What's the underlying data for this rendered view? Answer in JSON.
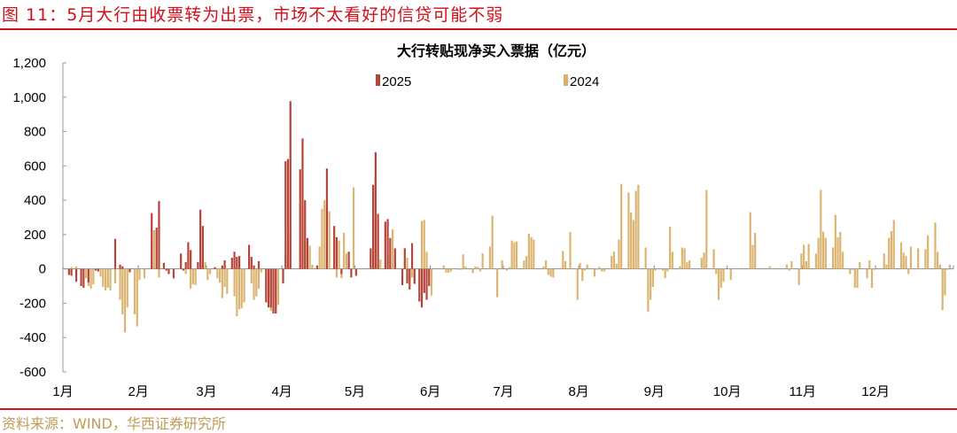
{
  "figure_title": "图 11：5月大行由收票转为出票，市场不太看好的信贷可能不弱",
  "source": "资料来源：WIND，华西证券研究所",
  "chart_data": {
    "type": "bar",
    "title": "大行转贴现净买入票据（亿元）",
    "xlabel": "",
    "ylabel": "",
    "ylim": [
      -600,
      1200
    ],
    "yticks": [
      "1,200",
      "1,000",
      "800",
      "600",
      "400",
      "200",
      "0",
      "-200",
      "-400",
      "-600"
    ],
    "ytick_values": [
      1200,
      1000,
      800,
      600,
      400,
      200,
      0,
      -200,
      -400,
      -600
    ],
    "xticks": [
      "1月",
      "2月",
      "3月",
      "4月",
      "5月",
      "6月",
      "7月",
      "8月",
      "9月",
      "10月",
      "11月",
      "12月"
    ],
    "grid": false,
    "legend_placement": "top",
    "series": [
      {
        "name": "2025",
        "color": "#b5443a",
        "points": [
          [
            "01-03",
            -35
          ],
          [
            "01-04",
            -40
          ],
          [
            "01-06",
            -75
          ],
          [
            "01-08",
            -100
          ],
          [
            "01-09",
            -110
          ],
          [
            "01-11",
            -80
          ],
          [
            "01-14",
            -10
          ],
          [
            "01-15",
            -15
          ],
          [
            "01-22",
            175
          ],
          [
            "01-24",
            25
          ],
          [
            "01-25",
            15
          ],
          [
            "01-28",
            -20
          ],
          [
            "02-06",
            325
          ],
          [
            "02-08",
            240
          ],
          [
            "02-09",
            395
          ],
          [
            "02-11",
            35
          ],
          [
            "02-12",
            -10
          ],
          [
            "02-13",
            -30
          ],
          [
            "02-15",
            -55
          ],
          [
            "02-18",
            90
          ],
          [
            "02-19",
            -10
          ],
          [
            "02-20",
            40
          ],
          [
            "02-21",
            155
          ],
          [
            "02-22",
            110
          ],
          [
            "02-25",
            40
          ],
          [
            "02-26",
            345
          ],
          [
            "02-27",
            250
          ],
          [
            "03-04",
            10
          ],
          [
            "03-07",
            20
          ],
          [
            "03-08",
            50
          ],
          [
            "03-11",
            65
          ],
          [
            "03-12",
            100
          ],
          [
            "03-13",
            70
          ],
          [
            "03-14",
            75
          ],
          [
            "03-18",
            140
          ],
          [
            "03-19",
            70
          ],
          [
            "03-20",
            20
          ],
          [
            "03-22",
            45
          ],
          [
            "03-25",
            -195
          ],
          [
            "03-26",
            -225
          ],
          [
            "03-27",
            -225
          ],
          [
            "03-28",
            -260
          ],
          [
            "03-29",
            -260
          ],
          [
            "04-01",
            -85
          ],
          [
            "04-02",
            627
          ],
          [
            "04-03",
            640
          ],
          [
            "04-04",
            977
          ],
          [
            "04-08",
            580
          ],
          [
            "04-09",
            760
          ],
          [
            "04-10",
            400
          ],
          [
            "04-11",
            180
          ],
          [
            "04-15",
            20
          ],
          [
            "04-19",
            585
          ],
          [
            "04-22",
            250
          ],
          [
            "04-23",
            185
          ],
          [
            "04-25",
            -30
          ],
          [
            "04-28",
            100
          ],
          [
            "04-29",
            -50
          ],
          [
            "05-01",
            -40
          ],
          [
            "05-07",
            120
          ],
          [
            "05-08",
            490
          ],
          [
            "05-09",
            680
          ],
          [
            "05-10",
            320
          ],
          [
            "05-13",
            275
          ],
          [
            "05-14",
            290
          ],
          [
            "05-15",
            180
          ],
          [
            "05-17",
            120
          ],
          [
            "05-20",
            -95
          ],
          [
            "05-21",
            120
          ],
          [
            "05-22",
            -85
          ],
          [
            "05-23",
            -120
          ],
          [
            "05-24",
            150
          ],
          [
            "05-25",
            -85
          ],
          [
            "05-27",
            -190
          ],
          [
            "05-28",
            -225
          ],
          [
            "05-29",
            -140
          ],
          [
            "05-30",
            -180
          ],
          [
            "05-31",
            -100
          ]
        ]
      },
      {
        "name": "2024",
        "color": "#d9b06a",
        "points": [
          [
            "01-04",
            10
          ],
          [
            "01-06",
            15
          ],
          [
            "01-10",
            -55
          ],
          [
            "01-11",
            -100
          ],
          [
            "01-12",
            -115
          ],
          [
            "01-13",
            -90
          ],
          [
            "01-16",
            -45
          ],
          [
            "01-17",
            -105
          ],
          [
            "01-18",
            -125
          ],
          [
            "01-19",
            -110
          ],
          [
            "01-20",
            -125
          ],
          [
            "01-22",
            -85
          ],
          [
            "01-24",
            -180
          ],
          [
            "01-25",
            -265
          ],
          [
            "01-26",
            -370
          ],
          [
            "01-27",
            -225
          ],
          [
            "01-30",
            -265
          ],
          [
            "01-31",
            -335
          ],
          [
            "02-01",
            -65
          ],
          [
            "02-03",
            -55
          ],
          [
            "02-06",
            150
          ],
          [
            "02-07",
            225
          ],
          [
            "02-09",
            -50
          ],
          [
            "02-20",
            -30
          ],
          [
            "02-22",
            -115
          ],
          [
            "02-23",
            -90
          ],
          [
            "02-24",
            -95
          ],
          [
            "02-27",
            40
          ],
          [
            "02-28",
            40
          ],
          [
            "03-01",
            -65
          ],
          [
            "03-02",
            -30
          ],
          [
            "03-05",
            -55
          ],
          [
            "03-06",
            -80
          ],
          [
            "03-07",
            -170
          ],
          [
            "03-08",
            -105
          ],
          [
            "03-09",
            -145
          ],
          [
            "03-12",
            -160
          ],
          [
            "03-13",
            -275
          ],
          [
            "03-14",
            -235
          ],
          [
            "03-15",
            -230
          ],
          [
            "03-16",
            -195
          ],
          [
            "03-19",
            -85
          ],
          [
            "03-20",
            -180
          ],
          [
            "03-21",
            -160
          ],
          [
            "03-22",
            -115
          ],
          [
            "03-23",
            -20
          ],
          [
            "03-26",
            -160
          ],
          [
            "03-27",
            -245
          ],
          [
            "03-29",
            -260
          ],
          [
            "03-30",
            -210
          ],
          [
            "04-02",
            75
          ],
          [
            "04-03",
            155
          ],
          [
            "04-04",
            220
          ],
          [
            "04-09",
            350
          ],
          [
            "04-10",
            170
          ],
          [
            "04-11",
            140
          ],
          [
            "04-12",
            135
          ],
          [
            "04-13",
            25
          ],
          [
            "04-16",
            130
          ],
          [
            "04-17",
            350
          ],
          [
            "04-18",
            400
          ],
          [
            "04-19",
            370
          ],
          [
            "04-20",
            335
          ],
          [
            "04-23",
            -50
          ],
          [
            "04-24",
            165
          ],
          [
            "04-25",
            -55
          ],
          [
            "04-26",
            210
          ],
          [
            "04-27",
            90
          ],
          [
            "04-30",
            475
          ],
          [
            "05-07",
            100
          ],
          [
            "05-08",
            265
          ],
          [
            "05-09",
            535
          ],
          [
            "05-10",
            280
          ],
          [
            "05-11",
            55
          ],
          [
            "05-14",
            85
          ],
          [
            "05-16",
            230
          ],
          [
            "05-17",
            75
          ],
          [
            "05-22",
            65
          ],
          [
            "05-23",
            -65
          ],
          [
            "05-24",
            -50
          ],
          [
            "05-25",
            -90
          ],
          [
            "05-28",
            280
          ],
          [
            "05-29",
            285
          ],
          [
            "05-30",
            100
          ],
          [
            "06-01",
            -155
          ],
          [
            "06-06",
            20
          ],
          [
            "06-07",
            -22
          ],
          [
            "06-08",
            -22
          ],
          [
            "06-09",
            -15
          ],
          [
            "06-12",
            -5
          ],
          [
            "06-13",
            -5
          ],
          [
            "06-14",
            85
          ],
          [
            "06-15",
            15
          ],
          [
            "06-18",
            -25
          ],
          [
            "06-19",
            15
          ],
          [
            "06-20",
            12
          ],
          [
            "06-21",
            -15
          ],
          [
            "06-22",
            90
          ],
          [
            "06-25",
            130
          ],
          [
            "06-26",
            310
          ],
          [
            "06-28",
            -165
          ],
          [
            "06-30",
            50
          ],
          [
            "07-02",
            -10
          ],
          [
            "07-03",
            10
          ],
          [
            "07-04",
            165
          ],
          [
            "07-05",
            155
          ],
          [
            "07-06",
            160
          ],
          [
            "07-09",
            50
          ],
          [
            "07-10",
            75
          ],
          [
            "07-11",
            205
          ],
          [
            "07-12",
            185
          ],
          [
            "07-13",
            170
          ],
          [
            "07-17",
            15
          ],
          [
            "07-18",
            50
          ],
          [
            "07-19",
            -35
          ],
          [
            "07-20",
            -45
          ],
          [
            "07-21",
            -50
          ],
          [
            "07-24",
            5
          ],
          [
            "07-25",
            105
          ],
          [
            "07-26",
            45
          ],
          [
            "07-28",
            215
          ],
          [
            "07-31",
            -180
          ],
          [
            "08-01",
            35
          ],
          [
            "08-02",
            -70
          ],
          [
            "08-03",
            -10
          ],
          [
            "08-04",
            25
          ],
          [
            "08-07",
            -45
          ],
          [
            "08-08",
            -5
          ],
          [
            "08-09",
            12
          ],
          [
            "08-10",
            -15
          ],
          [
            "08-11",
            -15
          ],
          [
            "08-14",
            75
          ],
          [
            "08-15",
            100
          ],
          [
            "08-16",
            30
          ],
          [
            "08-17",
            170
          ],
          [
            "08-18",
            495
          ],
          [
            "08-21",
            445
          ],
          [
            "08-22",
            330
          ],
          [
            "08-23",
            285
          ],
          [
            "08-24",
            455
          ],
          [
            "08-25",
            490
          ],
          [
            "08-28",
            125
          ],
          [
            "08-29",
            -250
          ],
          [
            "08-30",
            -180
          ],
          [
            "08-31",
            -105
          ],
          [
            "09-01",
            -10
          ],
          [
            "09-04",
            -10
          ],
          [
            "09-05",
            -55
          ],
          [
            "09-06",
            -15
          ],
          [
            "09-07",
            245
          ],
          [
            "09-08",
            100
          ],
          [
            "09-11",
            15
          ],
          [
            "09-12",
            125
          ],
          [
            "09-13",
            120
          ],
          [
            "09-14",
            40
          ],
          [
            "09-15",
            50
          ],
          [
            "09-20",
            65
          ],
          [
            "09-21",
            95
          ],
          [
            "09-22",
            460
          ],
          [
            "09-25",
            115
          ],
          [
            "09-26",
            -30
          ],
          [
            "09-27",
            -180
          ],
          [
            "09-28",
            -110
          ],
          [
            "09-29",
            -75
          ],
          [
            "10-02",
            -65
          ],
          [
            "10-10",
            330
          ],
          [
            "10-11",
            140
          ],
          [
            "10-12",
            210
          ],
          [
            "10-18",
            15
          ],
          [
            "10-19",
            3
          ],
          [
            "10-25",
            25
          ],
          [
            "10-26",
            -10
          ],
          [
            "10-27",
            45
          ],
          [
            "10-30",
            -95
          ],
          [
            "10-31",
            90
          ],
          [
            "11-01",
            140
          ],
          [
            "11-02",
            45
          ],
          [
            "11-03",
            145
          ],
          [
            "11-06",
            90
          ],
          [
            "11-07",
            180
          ],
          [
            "11-08",
            460
          ],
          [
            "11-09",
            217
          ],
          [
            "11-10",
            180
          ],
          [
            "11-13",
            125
          ],
          [
            "11-14",
            315
          ],
          [
            "11-15",
            185
          ],
          [
            "11-16",
            215
          ],
          [
            "11-17",
            100
          ],
          [
            "11-20",
            -30
          ],
          [
            "11-21",
            -5
          ],
          [
            "11-22",
            -110
          ],
          [
            "11-23",
            -110
          ],
          [
            "11-24",
            40
          ],
          [
            "11-27",
            -55
          ],
          [
            "11-28",
            50
          ],
          [
            "11-29",
            -110
          ],
          [
            "11-30",
            -5
          ],
          [
            "12-01",
            5
          ],
          [
            "12-04",
            90
          ],
          [
            "12-05",
            25
          ],
          [
            "12-06",
            180
          ],
          [
            "12-07",
            220
          ],
          [
            "12-08",
            285
          ],
          [
            "12-11",
            155
          ],
          [
            "12-12",
            95
          ],
          [
            "12-13",
            75
          ],
          [
            "12-14",
            -30
          ],
          [
            "12-15",
            130
          ],
          [
            "12-18",
            120
          ],
          [
            "12-19",
            3
          ],
          [
            "12-21",
            115
          ],
          [
            "12-22",
            195
          ],
          [
            "12-25",
            270
          ],
          [
            "12-26",
            100
          ],
          [
            "12-27",
            25
          ],
          [
            "12-28",
            -240
          ],
          [
            "12-29",
            -155
          ],
          [
            "12-30",
            -5
          ],
          [
            "12-31",
            25
          ]
        ]
      }
    ]
  }
}
